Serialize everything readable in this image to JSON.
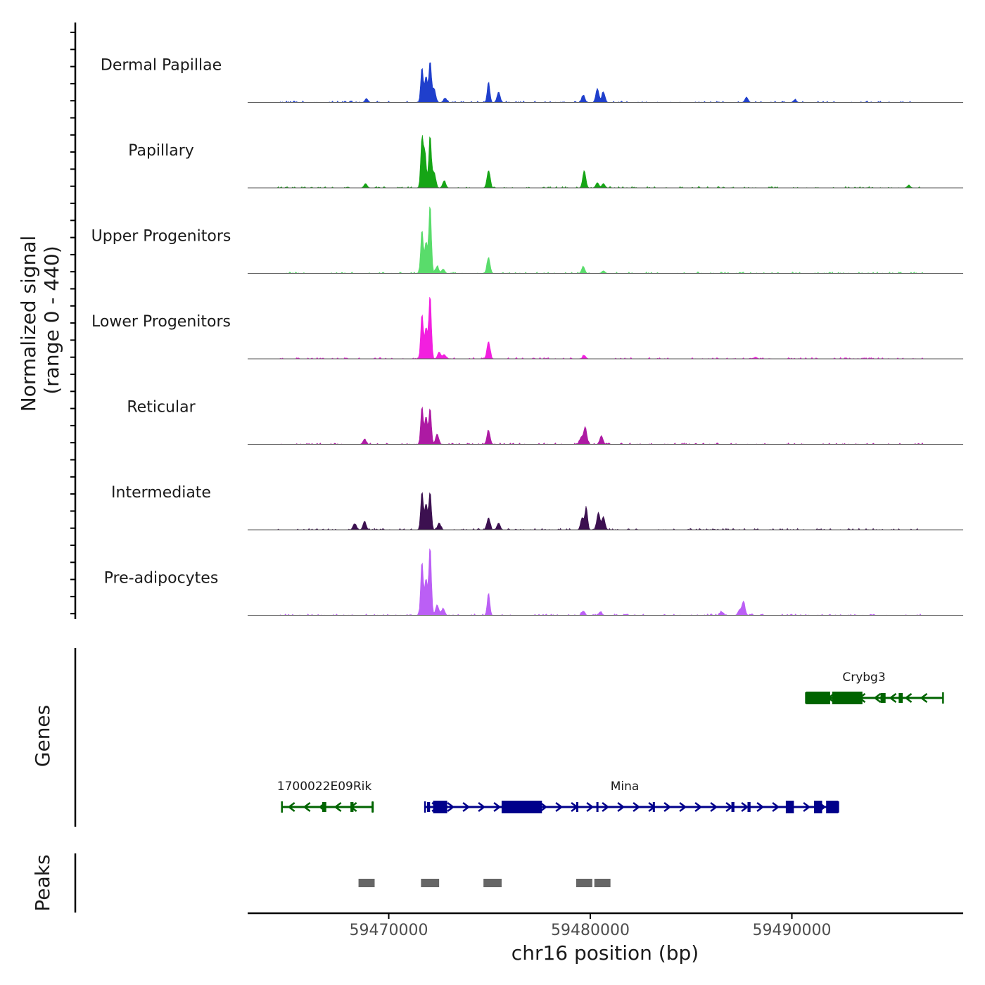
{
  "chart_data": {
    "type": "area",
    "y_axis_label": "Normalized signal",
    "y_axis_range_label": "(range 0 - 440)",
    "ylim": [
      0,
      440
    ],
    "xlabel": "chr16 position (bp)",
    "xlim": [
      59463000,
      59498500
    ],
    "x_ticks": [
      {
        "value": 59470000,
        "label": "59470000"
      },
      {
        "value": 59480000,
        "label": "59480000"
      },
      {
        "value": 59490000,
        "label": "59490000"
      }
    ],
    "tracks": [
      {
        "name": "Dermal Papillae",
        "color": "#1f3fcc",
        "peaks": [
          [
            59468900,
            20
          ],
          [
            59471650,
            200
          ],
          [
            59471850,
            150
          ],
          [
            59472050,
            235
          ],
          [
            59472250,
            80
          ],
          [
            59472800,
            25
          ],
          [
            59474950,
            120
          ],
          [
            59475450,
            60
          ],
          [
            59479650,
            40
          ],
          [
            59480350,
            80
          ],
          [
            59480650,
            60
          ],
          [
            59487750,
            30
          ],
          [
            59490150,
            15
          ]
        ]
      },
      {
        "name": "Papillary",
        "color": "#16a516",
        "peaks": [
          [
            59468850,
            25
          ],
          [
            59471650,
            290
          ],
          [
            59471800,
            200
          ],
          [
            59472050,
            300
          ],
          [
            59472250,
            90
          ],
          [
            59472750,
            40
          ],
          [
            59474950,
            100
          ],
          [
            59479700,
            100
          ],
          [
            59480350,
            30
          ],
          [
            59480650,
            25
          ],
          [
            59495800,
            15
          ]
        ]
      },
      {
        "name": "Upper Progenitors",
        "color": "#59dc6b",
        "peaks": [
          [
            59471650,
            250
          ],
          [
            59471850,
            180
          ],
          [
            59472050,
            400
          ],
          [
            59472400,
            40
          ],
          [
            59472700,
            25
          ],
          [
            59474950,
            90
          ],
          [
            59479650,
            40
          ],
          [
            59480650,
            15
          ]
        ]
      },
      {
        "name": "Lower Progenitors",
        "color": "#f21fdf",
        "peaks": [
          [
            59471650,
            260
          ],
          [
            59471850,
            180
          ],
          [
            59472050,
            370
          ],
          [
            59472500,
            40
          ],
          [
            59472750,
            25
          ],
          [
            59474950,
            100
          ],
          [
            59479700,
            20
          ],
          [
            59488200,
            10
          ]
        ]
      },
      {
        "name": "Reticular",
        "color": "#ad1aa3",
        "peaks": [
          [
            59468800,
            30
          ],
          [
            59471650,
            220
          ],
          [
            59471850,
            160
          ],
          [
            59472050,
            210
          ],
          [
            59472400,
            60
          ],
          [
            59474950,
            80
          ],
          [
            59479550,
            40
          ],
          [
            59479750,
            100
          ],
          [
            59480550,
            50
          ]
        ]
      },
      {
        "name": "Intermediate",
        "color": "#3c1050",
        "peaks": [
          [
            59468300,
            35
          ],
          [
            59468800,
            50
          ],
          [
            59471650,
            220
          ],
          [
            59471850,
            150
          ],
          [
            59472050,
            220
          ],
          [
            59472500,
            40
          ],
          [
            59474950,
            70
          ],
          [
            59475450,
            40
          ],
          [
            59479600,
            70
          ],
          [
            59479800,
            130
          ],
          [
            59480400,
            100
          ],
          [
            59480650,
            75
          ]
        ]
      },
      {
        "name": "Pre-adipocytes",
        "color": "#bb5ff5",
        "peaks": [
          [
            59471650,
            310
          ],
          [
            59471850,
            210
          ],
          [
            59472050,
            400
          ],
          [
            59472400,
            60
          ],
          [
            59472700,
            40
          ],
          [
            59474950,
            130
          ],
          [
            59479650,
            25
          ],
          [
            59480500,
            20
          ],
          [
            59486500,
            20
          ],
          [
            59487400,
            30
          ],
          [
            59487600,
            80
          ]
        ]
      }
    ],
    "genes_label": "Genes",
    "genes": [
      {
        "name": "Crybg3",
        "strand": "-",
        "color": "#006400",
        "start": 59490700,
        "end": 59497500,
        "exons": [
          [
            59490700,
            59491900,
            "thick"
          ],
          [
            59492000,
            59493500,
            "thick"
          ],
          [
            59494400,
            59494650,
            "thin"
          ],
          [
            59495300,
            59495500,
            "thin"
          ]
        ]
      },
      {
        "name": "1700022E09Rik",
        "strand": "-",
        "color": "#006400",
        "start": 59464700,
        "end": 59469200,
        "exons": [
          [
            59466700,
            59466900,
            "thin"
          ],
          [
            59468100,
            59468250,
            "thin"
          ],
          [
            59469150,
            59469200,
            "thin"
          ]
        ]
      },
      {
        "name": "Mina",
        "strand": "+",
        "color": "#00008b",
        "start": 59471800,
        "end": 59492300,
        "exons": [
          [
            59471900,
            59472050,
            "thin"
          ],
          [
            59472200,
            59472900,
            "thick"
          ],
          [
            59475600,
            59477600,
            "thick"
          ],
          [
            59479300,
            59479400,
            "thin"
          ],
          [
            59480300,
            59480400,
            "thin"
          ],
          [
            59483100,
            59483200,
            "thin"
          ],
          [
            59487000,
            59487150,
            "thin"
          ],
          [
            59487800,
            59487950,
            "thin"
          ],
          [
            59489700,
            59490100,
            "thick"
          ],
          [
            59491100,
            59491500,
            "thick"
          ],
          [
            59491700,
            59492300,
            "thick"
          ]
        ]
      }
    ],
    "peaks_label": "Peaks",
    "peak_regions": [
      [
        59468500,
        59469300
      ],
      [
        59471600,
        59472500
      ],
      [
        59474700,
        59475600
      ],
      [
        59479300,
        59480100
      ],
      [
        59480200,
        59481000
      ]
    ]
  }
}
